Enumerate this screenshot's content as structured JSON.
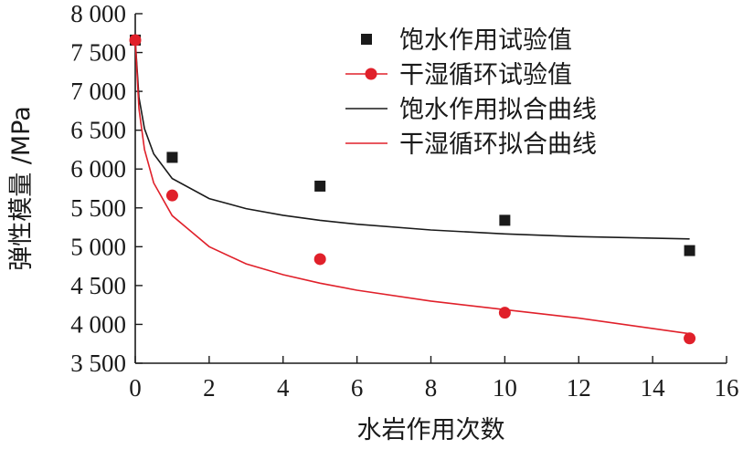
{
  "chart_data": {
    "type": "scatter",
    "xlabel": "水岩作用次数",
    "ylabel": "弹性模量 /MPa",
    "xlim": [
      0,
      16
    ],
    "ylim": [
      3500,
      8000
    ],
    "x_ticks": [
      "0",
      "2",
      "4",
      "6",
      "8",
      "10",
      "12",
      "14",
      "16"
    ],
    "y_ticks": [
      "3 500",
      "4 000",
      "4 500",
      "5 000",
      "5 500",
      "6 000",
      "6 500",
      "7 000",
      "7 500",
      "8 000"
    ],
    "grid": false,
    "legend_position": "top-right",
    "series": [
      {
        "name": "饱水作用试验值",
        "kind": "scatter",
        "marker": "square",
        "color": "#1a1a1a",
        "x": [
          0,
          1,
          5,
          10,
          15
        ],
        "y": [
          7660,
          6150,
          5780,
          5340,
          4950
        ]
      },
      {
        "name": "干湿循环试验值",
        "kind": "scatter",
        "marker": "circle",
        "color": "#e0202a",
        "x": [
          0,
          1,
          5,
          10,
          15
        ],
        "y": [
          7660,
          5660,
          4840,
          4150,
          3820
        ]
      },
      {
        "name": "饱水作用拟合曲线",
        "kind": "line",
        "color": "#1a1a1a",
        "x": [
          0,
          0.1,
          0.25,
          0.5,
          1,
          2,
          3,
          4,
          5,
          6,
          8,
          10,
          12,
          15
        ],
        "y": [
          7660,
          6925,
          6520,
          6195,
          5878,
          5620,
          5490,
          5405,
          5340,
          5290,
          5215,
          5165,
          5130,
          5100
        ]
      },
      {
        "name": "干湿循环拟合曲线",
        "kind": "line",
        "color": "#e0202a",
        "x": [
          0,
          0.1,
          0.25,
          0.5,
          1,
          2,
          3,
          4,
          5,
          6,
          8,
          10,
          12,
          15
        ],
        "y": [
          7660,
          6780,
          6250,
          5820,
          5400,
          5000,
          4780,
          4640,
          4530,
          4440,
          4300,
          4190,
          4080,
          3880
        ]
      }
    ]
  }
}
